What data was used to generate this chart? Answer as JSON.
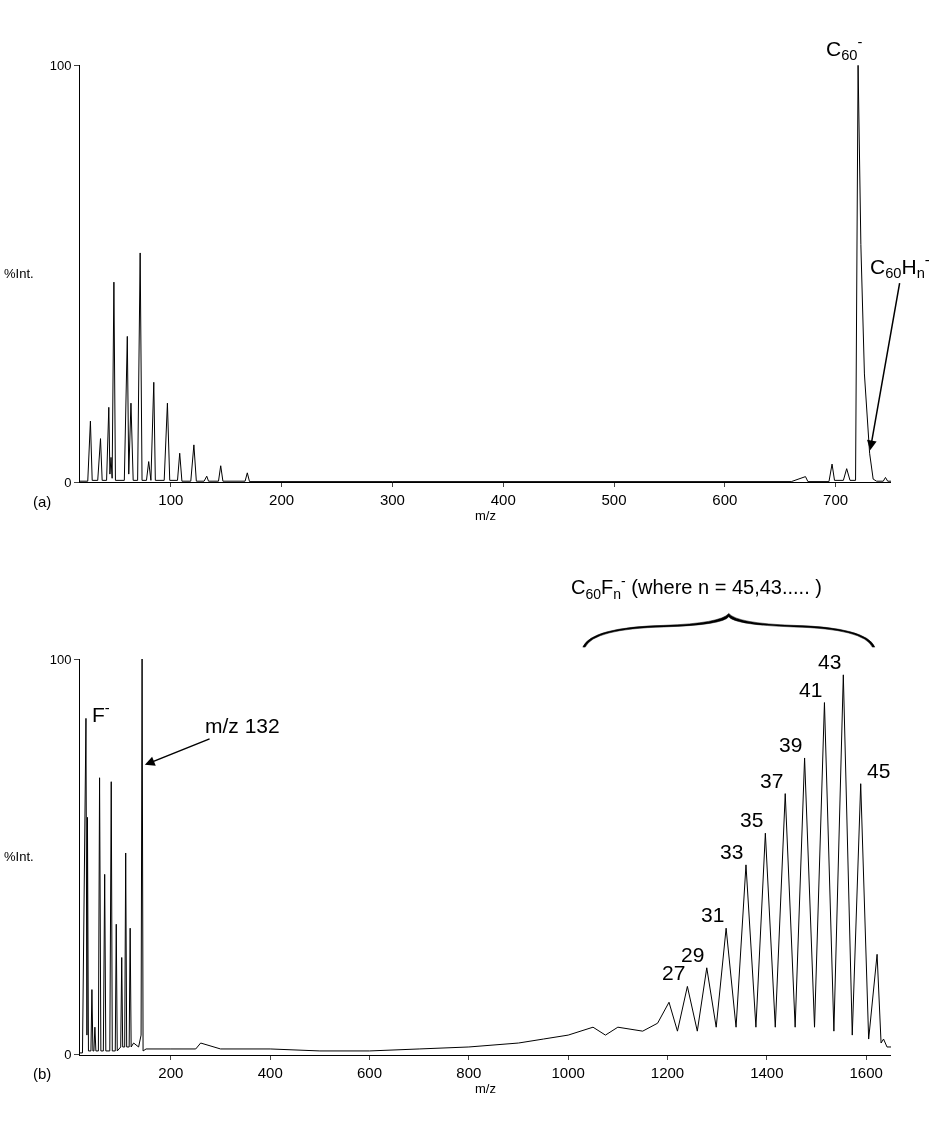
{
  "chart_data": [
    {
      "type": "line",
      "xlabel": "m/z",
      "ylabel": "%Int.",
      "xlim": [
        18,
        750
      ],
      "ylim": [
        0,
        100
      ],
      "xticks": [
        100,
        200,
        300,
        400,
        500,
        600,
        700
      ],
      "yticks": [
        0,
        100
      ],
      "x": [
        18,
        25,
        27.4,
        29,
        34,
        36.5,
        38,
        42,
        44,
        45,
        46,
        47,
        48.6,
        50,
        58,
        60.7,
        62,
        64,
        66,
        70,
        72.3,
        74,
        78,
        80,
        82,
        84.6,
        86,
        94,
        96.9,
        99,
        106,
        108,
        110,
        118,
        120.8,
        123,
        130,
        132.4,
        134,
        143,
        145,
        147,
        167,
        169,
        171,
        300,
        500,
        660,
        672.8,
        675,
        694,
        696.8,
        699,
        707,
        710,
        713,
        718,
        720.3,
        722.8,
        726,
        730.7,
        733.9,
        737,
        743,
        745,
        747,
        750
      ],
      "series": [
        {
          "color": "#000000",
          "values": [
            0.3,
            0.3,
            14.7,
            0.5,
            0.5,
            10.5,
            0.5,
            0.5,
            18,
            2,
            6,
            1,
            48,
            0.5,
            0.5,
            35,
            2,
            19,
            0.5,
            0.5,
            55,
            0.5,
            0.5,
            5,
            0.5,
            24,
            0.5,
            0.5,
            19,
            0.5,
            0.5,
            7,
            0.3,
            0.3,
            9,
            0.3,
            0.3,
            1.5,
            0.3,
            0.3,
            4,
            0.3,
            0.3,
            2.3,
            0.2,
            0.2,
            0.2,
            0.2,
            1.4,
            0.2,
            0.2,
            4.4,
            0.5,
            0.5,
            3.3,
            0.5,
            0.5,
            100,
            57,
            26,
            7,
            0.8,
            0.3,
            0.3,
            1.2,
            0.3,
            0.3
          ]
        }
      ],
      "annotations": [
        {
          "text": "C$_{60}$$^{-}$",
          "x": 720.3,
          "y": 100
        },
        {
          "text": "C$_{60}$H$_{n}$$^{-}$",
          "x": 730.7,
          "y": 7
        },
        "(a)"
      ]
    },
    {
      "type": "line",
      "xlabel": "m/z",
      "ylabel": "%Int.",
      "xlim": [
        17,
        1650
      ],
      "ylim": [
        0,
        100
      ],
      "xticks": [
        200,
        400,
        600,
        800,
        1000,
        1200,
        1400,
        1600
      ],
      "yticks": [
        0,
        100
      ],
      "x": [
        17,
        22,
        29,
        31,
        32,
        34,
        39,
        41,
        43,
        45,
        47,
        49,
        54,
        56.4,
        59,
        64,
        66.7,
        69,
        77,
        79.9,
        82,
        88,
        90,
        92,
        99,
        101,
        103,
        107,
        109,
        111,
        116,
        118,
        120,
        125,
        135,
        140,
        142,
        144,
        150,
        200,
        250,
        260,
        300,
        400,
        500,
        600,
        700,
        800,
        900,
        950,
        1000,
        1050,
        1075,
        1100,
        1150,
        1180,
        1203,
        1220,
        1240,
        1260,
        1279,
        1298,
        1318,
        1338,
        1358,
        1378,
        1397,
        1417,
        1437,
        1457,
        1476,
        1496,
        1516,
        1535,
        1554,
        1572,
        1589,
        1605,
        1622,
        1630,
        1635,
        1642,
        1650
      ],
      "series": [
        {
          "color": "#000000",
          "values": [
            0.5,
            0.5,
            85,
            5,
            60,
            1,
            1,
            16.5,
            1,
            1,
            7,
            1,
            1,
            70,
            1,
            1,
            45.6,
            1,
            1,
            69,
            1,
            1,
            33,
            1,
            2,
            24.6,
            2,
            2,
            51,
            2,
            2,
            32,
            2,
            3,
            2,
            5,
            100,
            1,
            1.5,
            1.5,
            1.5,
            3,
            1.5,
            1.5,
            1,
            1,
            1.5,
            2,
            3,
            4,
            5,
            7,
            5,
            7,
            6,
            8,
            13.3,
            6,
            17.3,
            6,
            22,
            7,
            32,
            7,
            48,
            7,
            56,
            7,
            66,
            7,
            75,
            7,
            89,
            6,
            96,
            5,
            68.5,
            4,
            25.4,
            3,
            4,
            2,
            2
          ]
        }
      ],
      "annotations": [
        {
          "text": "F$^{-}$",
          "x": 29,
          "y": 85
        },
        {
          "text": "m/z 132",
          "x": 142,
          "y": 73
        },
        {
          "text": "27",
          "x": 1240,
          "y": 17.3
        },
        {
          "text": "29",
          "x": 1279,
          "y": 22
        },
        {
          "text": "31",
          "x": 1318,
          "y": 32
        },
        {
          "text": "33",
          "x": 1358,
          "y": 48
        },
        {
          "text": "35",
          "x": 1397,
          "y": 56
        },
        {
          "text": "37",
          "x": 1437,
          "y": 66
        },
        {
          "text": "39",
          "x": 1476,
          "y": 75
        },
        {
          "text": "41",
          "x": 1516,
          "y": 89
        },
        {
          "text": "43",
          "x": 1554,
          "y": 96
        },
        {
          "text": "45",
          "x": 1589,
          "y": 68.5
        },
        "C$_{60}$F$_{n}$$^{-}$ (where n = 45,43..... )",
        "(b)"
      ]
    }
  ]
}
